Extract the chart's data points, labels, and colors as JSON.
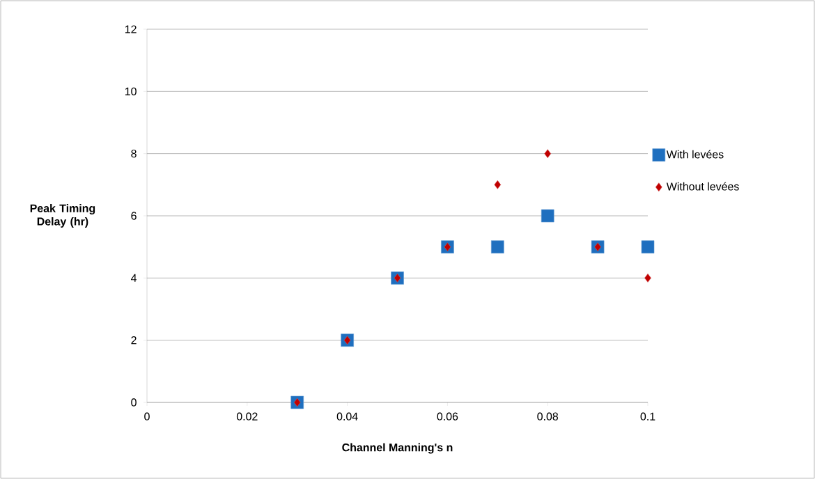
{
  "chart_data": {
    "type": "scatter",
    "xlabel": "Channel Manning's n",
    "ylabel": "Peak Timing Delay (hr)",
    "x": [
      0.03,
      0.04,
      0.05,
      0.06,
      0.07,
      0.08,
      0.09,
      0.1
    ],
    "series": [
      {
        "name": "With levées",
        "color": "#1f6fbf",
        "marker": "square",
        "values": [
          0,
          2,
          4,
          5,
          5,
          6,
          5,
          5
        ]
      },
      {
        "name": "Without levées",
        "color": "#c00000",
        "marker": "diamond",
        "values": [
          0,
          2,
          4,
          5,
          7,
          8,
          5,
          4
        ]
      }
    ],
    "xlim": [
      0,
      0.1
    ],
    "xticks": [
      0,
      0.02,
      0.04,
      0.06,
      0.08,
      0.1
    ],
    "ylim": [
      0,
      12
    ],
    "yticks": [
      0,
      2,
      4,
      6,
      8,
      10,
      12
    ],
    "grid": "y",
    "legend": "right"
  }
}
